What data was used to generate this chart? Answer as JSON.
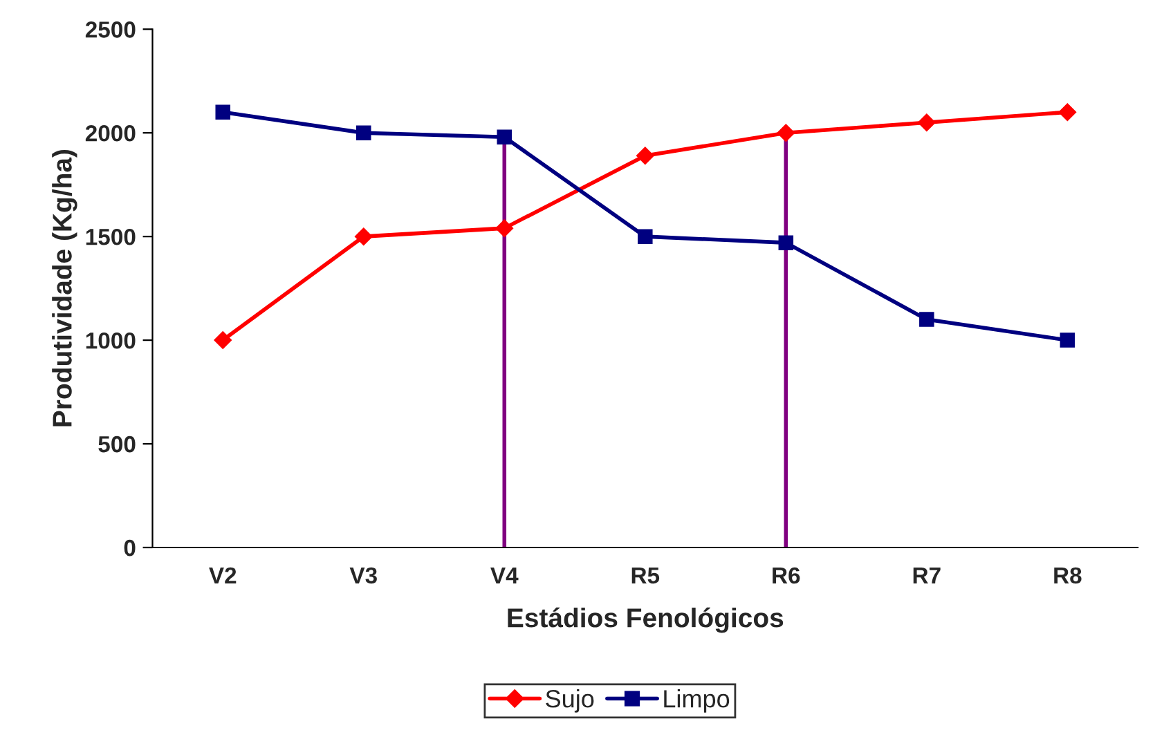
{
  "chart_data": {
    "type": "line",
    "xlabel": "Estádios Fenológicos",
    "ylabel": "Produtividade (Kg/ha)",
    "categories": [
      "V2",
      "V3",
      "V4",
      "R5",
      "R6",
      "R7",
      "R8"
    ],
    "series": [
      {
        "name": "Sujo",
        "color": "#ff0000",
        "marker": "diamond",
        "values": [
          1000,
          1500,
          1540,
          1890,
          2000,
          2050,
          2100
        ]
      },
      {
        "name": "Limpo",
        "color": "#000080",
        "marker": "square",
        "values": [
          2100,
          2000,
          1980,
          1500,
          1470,
          1100,
          1000
        ]
      }
    ],
    "ylim": [
      0,
      2500
    ],
    "yticks": [
      0,
      500,
      1000,
      1500,
      2000,
      2500
    ],
    "ref_lines": [
      {
        "axis": "x",
        "value": "V4",
        "color": "#800080"
      },
      {
        "axis": "x",
        "value": "R6",
        "color": "#800080"
      }
    ],
    "grid": false,
    "legend": "bottom"
  }
}
